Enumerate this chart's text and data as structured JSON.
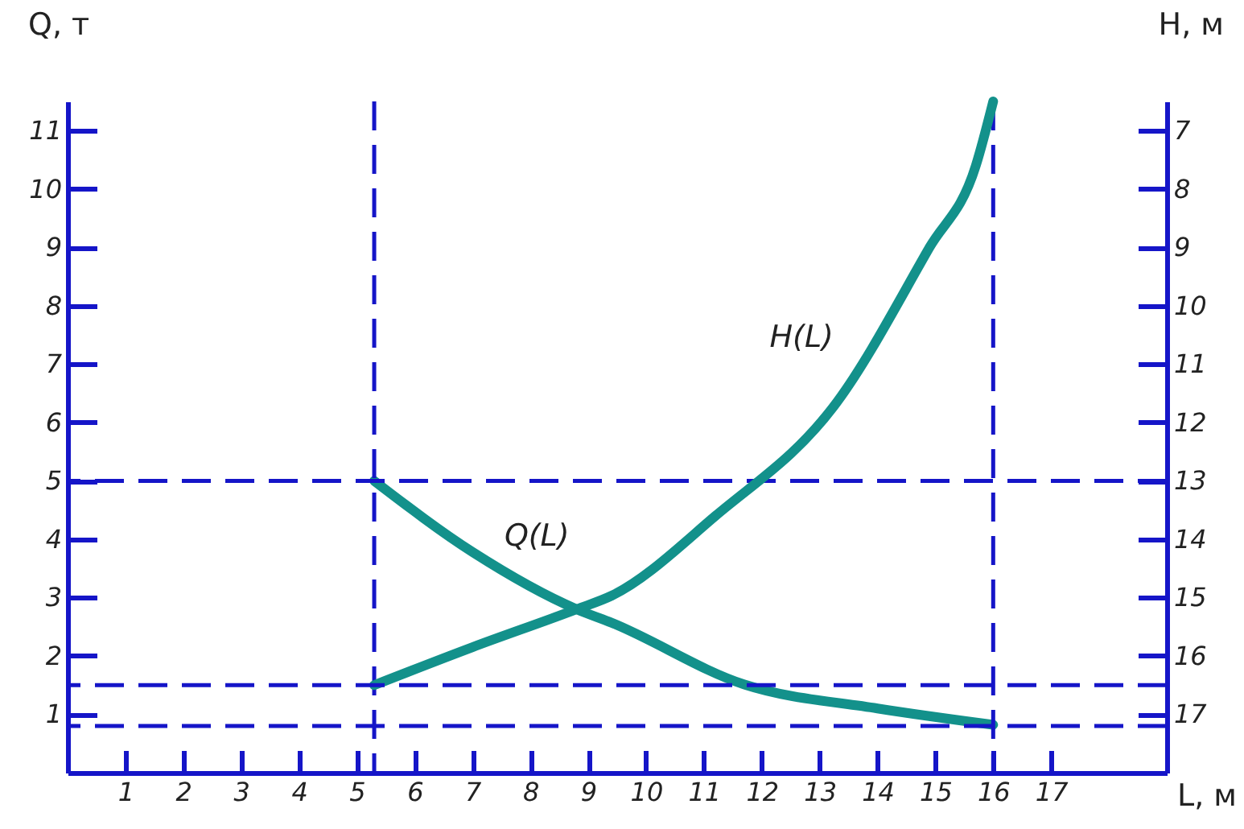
{
  "chart_data": {
    "type": "line",
    "xlabel": "L, м",
    "ylabel": "Q, т",
    "y2label": "H, м",
    "xlim": [
      0,
      19
    ],
    "xticks": [
      1,
      2,
      3,
      4,
      5,
      6,
      7,
      8,
      9,
      10,
      11,
      12,
      13,
      14,
      15,
      16,
      17
    ],
    "ylim": [
      0,
      11.5
    ],
    "yticks": [
      1,
      2,
      3,
      4,
      5,
      6,
      7,
      8,
      9,
      10,
      11
    ],
    "y2lim": [
      18,
      6.5
    ],
    "y2ticks": [
      7,
      8,
      9,
      10,
      11,
      12,
      13,
      14,
      15,
      16,
      17
    ],
    "grid": false,
    "line_style": "solid",
    "series": [
      {
        "name": "Q(L)",
        "color": "#13918b",
        "x": [
          5.3,
          7,
          8.8,
          9.4,
          11.7,
          14,
          16
        ],
        "values": [
          5,
          3.78,
          2.8,
          2.57,
          1.51,
          1.1,
          0.82
        ]
      },
      {
        "name": "H(L)",
        "color": "#13918b",
        "axis": "y2",
        "x": [
          5.3,
          7,
          8.8,
          9.4,
          11.2,
          13.3,
          14.9,
          15.7,
          16
        ],
        "values": [
          16.5,
          15.85,
          15.2,
          14.97,
          13.6,
          11.65,
          9.0,
          7.6,
          6.5
        ]
      }
    ],
    "ref_lines": [
      {
        "axis": "y",
        "value": 5,
        "color": "#1515c8",
        "line_style": "dashed"
      },
      {
        "axis": "x",
        "value": 5.3,
        "color": "#1515c8",
        "line_style": "dashed"
      },
      {
        "axis": "y2",
        "value": 16.5,
        "color": "#1515c8",
        "line_style": "dashed"
      },
      {
        "axis": "x",
        "value": 16,
        "color": "#1515c8",
        "line_style": "dashed"
      },
      {
        "axis": "y",
        "value": 0.8,
        "color": "#1515c8",
        "line_style": "dashed"
      }
    ]
  }
}
